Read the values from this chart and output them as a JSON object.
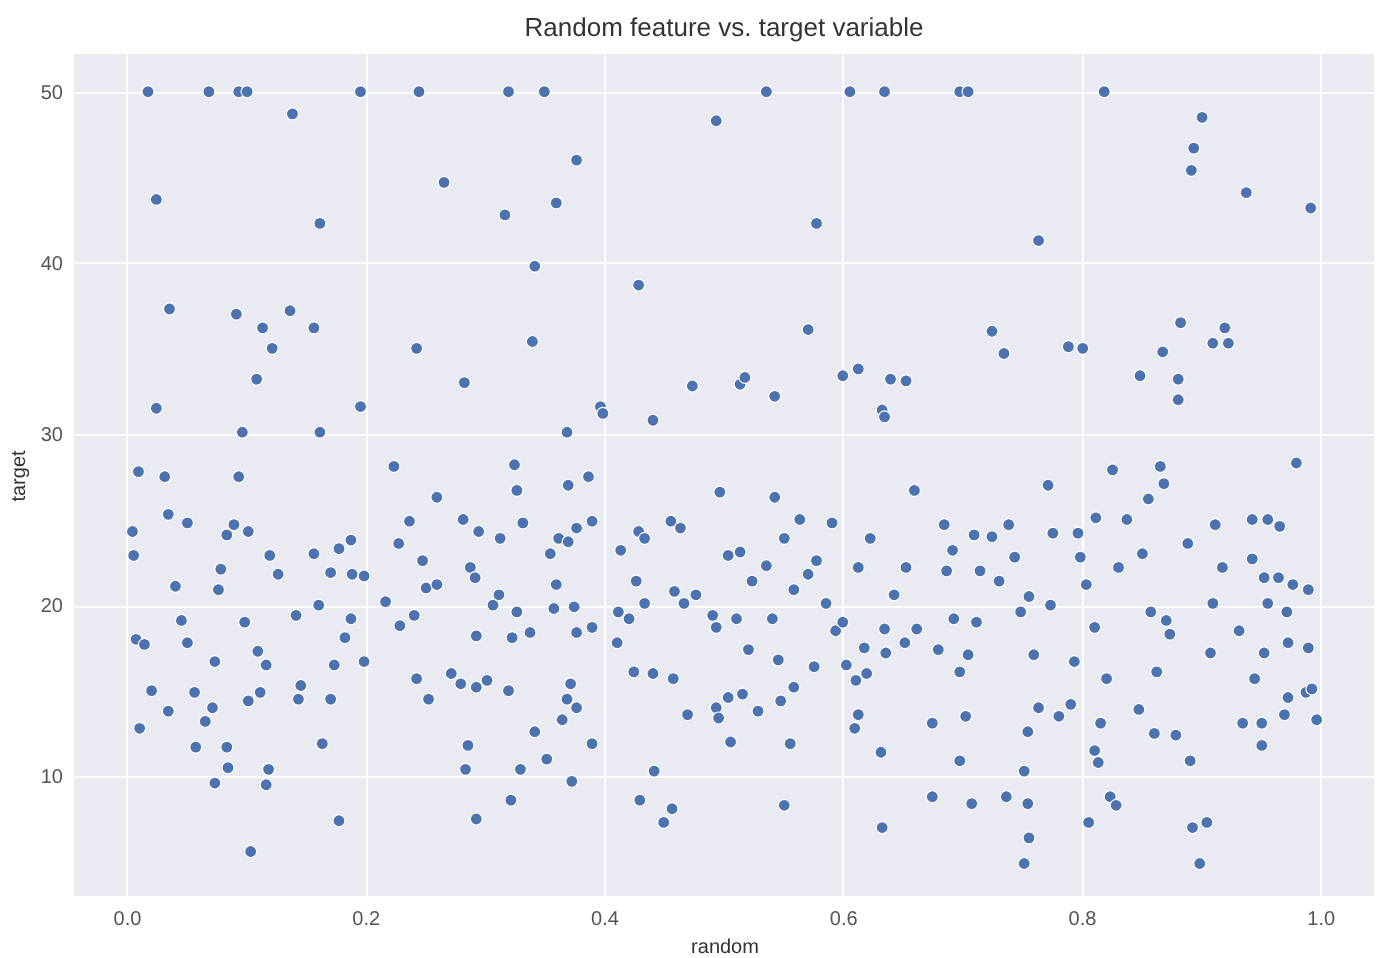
{
  "chart_data": {
    "type": "scatter",
    "title": "Random feature vs. target variable",
    "xlabel": "random",
    "ylabel": "target",
    "x": [
      0.018,
      0.069,
      0.094,
      0.101,
      0.196,
      0.245,
      0.32,
      0.35,
      0.536,
      0.606,
      0.635,
      0.698,
      0.705,
      0.819,
      0.139,
      0.025,
      0.162,
      0.266,
      0.317,
      0.377,
      0.36,
      0.342,
      0.494,
      0.578,
      0.901,
      0.894,
      0.892,
      0.938,
      0.992,
      0.764,
      0.036,
      0.092,
      0.137,
      0.114,
      0.157,
      0.122,
      0.243,
      0.34,
      0.109,
      0.283,
      0.429,
      0.474,
      0.196,
      0.025,
      0.397,
      0.399,
      0.441,
      0.369,
      0.162,
      0.097,
      0.571,
      0.883,
      0.92,
      0.725,
      0.735,
      0.789,
      0.801,
      0.868,
      0.91,
      0.923,
      0.6,
      0.613,
      0.64,
      0.653,
      0.881,
      0.849,
      0.543,
      0.514,
      0.518,
      0.633,
      0.635,
      0.881,
      0.005,
      0.01,
      0.006,
      0.008,
      0.011,
      0.015,
      0.021,
      0.032,
      0.035,
      0.035,
      0.041,
      0.051,
      0.046,
      0.057,
      0.058,
      0.051,
      0.066,
      0.072,
      0.074,
      0.074,
      0.077,
      0.079,
      0.084,
      0.084,
      0.085,
      0.09,
      0.094,
      0.099,
      0.102,
      0.104,
      0.102,
      0.11,
      0.112,
      0.117,
      0.117,
      0.119,
      0.12,
      0.127,
      0.142,
      0.146,
      0.144,
      0.157,
      0.161,
      0.164,
      0.171,
      0.171,
      0.174,
      0.178,
      0.178,
      0.183,
      0.188,
      0.189,
      0.188,
      0.199,
      0.199,
      0.217,
      0.224,
      0.228,
      0.229,
      0.237,
      0.241,
      0.243,
      0.248,
      0.251,
      0.253,
      0.26,
      0.26,
      0.272,
      0.28,
      0.282,
      0.284,
      0.286,
      0.288,
      0.292,
      0.293,
      0.293,
      0.293,
      0.295,
      0.302,
      0.307,
      0.312,
      0.313,
      0.32,
      0.322,
      0.323,
      0.325,
      0.327,
      0.327,
      0.33,
      0.332,
      0.338,
      0.342,
      0.352,
      0.355,
      0.358,
      0.36,
      0.362,
      0.365,
      0.369,
      0.37,
      0.37,
      0.372,
      0.373,
      0.375,
      0.377,
      0.377,
      0.377,
      0.387,
      0.39,
      0.39,
      0.39,
      0.411,
      0.412,
      0.414,
      0.421,
      0.425,
      0.427,
      0.429,
      0.43,
      0.434,
      0.434,
      0.441,
      0.442,
      0.45,
      0.456,
      0.457,
      0.458,
      0.459,
      0.464,
      0.467,
      0.47,
      0.476,
      0.491,
      0.494,
      0.494,
      0.496,
      0.477,
      0.497,
      0.504,
      0.504,
      0.506,
      0.511,
      0.514,
      0.516,
      0.521,
      0.524,
      0.529,
      0.536,
      0.541,
      0.543,
      0.546,
      0.548,
      0.551,
      0.551,
      0.556,
      0.559,
      0.559,
      0.564,
      0.571,
      0.576,
      0.578,
      0.586,
      0.591,
      0.594,
      0.6,
      0.603,
      0.61,
      0.611,
      0.613,
      0.613,
      0.618,
      0.62,
      0.623,
      0.632,
      0.633,
      0.635,
      0.636,
      0.643,
      0.652,
      0.653,
      0.66,
      0.662,
      0.675,
      0.675,
      0.68,
      0.685,
      0.687,
      0.692,
      0.693,
      0.698,
      0.698,
      0.703,
      0.705,
      0.708,
      0.71,
      0.712,
      0.715,
      0.725,
      0.731,
      0.737,
      0.739,
      0.744,
      0.749,
      0.752,
      0.752,
      0.755,
      0.755,
      0.756,
      0.756,
      0.76,
      0.764,
      0.772,
      0.774,
      0.776,
      0.781,
      0.791,
      0.794,
      0.797,
      0.799,
      0.804,
      0.806,
      0.811,
      0.811,
      0.812,
      0.814,
      0.816,
      0.821,
      0.824,
      0.826,
      0.829,
      0.831,
      0.838,
      0.848,
      0.851,
      0.856,
      0.858,
      0.861,
      0.863,
      0.866,
      0.869,
      0.871,
      0.874,
      0.879,
      0.889,
      0.891,
      0.893,
      0.899,
      0.905,
      0.908,
      0.91,
      0.912,
      0.918,
      0.935,
      0.932,
      0.943,
      0.943,
      0.945,
      0.951,
      0.951,
      0.953,
      0.953,
      0.956,
      0.956,
      0.965,
      0.966,
      0.97,
      0.972,
      0.973,
      0.973,
      0.977,
      0.98,
      0.988,
      0.99,
      0.99,
      0.993,
      0.997
    ],
    "values": [
      50,
      50,
      50,
      50,
      50,
      50,
      50,
      50,
      50,
      50,
      50,
      50,
      50,
      50,
      48.7,
      43.7,
      42.3,
      44.7,
      42.8,
      46,
      43.5,
      39.8,
      48.3,
      42.3,
      48.5,
      46.7,
      45.4,
      44.1,
      43.2,
      41.3,
      37.3,
      37,
      37.2,
      36.2,
      36.2,
      35,
      35,
      35.4,
      33.2,
      33,
      38.7,
      32.8,
      31.6,
      31.5,
      31.6,
      31.2,
      30.8,
      30.1,
      30.1,
      30.1,
      36.1,
      36.5,
      36.2,
      36,
      34.7,
      35.1,
      35,
      34.8,
      35.3,
      35.3,
      33.4,
      33.8,
      33.2,
      33.1,
      33.2,
      33.4,
      32.2,
      32.9,
      33.3,
      31.4,
      31,
      32,
      24.3,
      27.8,
      22.9,
      18.0,
      12.8,
      17.7,
      15.0,
      27.5,
      25.3,
      13.8,
      21.1,
      24.8,
      19.1,
      14.9,
      11.7,
      17.8,
      13.2,
      14.0,
      9.6,
      16.7,
      20.9,
      22.1,
      24.1,
      11.7,
      10.5,
      24.7,
      27.5,
      19.0,
      14.4,
      5.6,
      24.3,
      17.3,
      14.9,
      16.5,
      9.5,
      10.4,
      22.9,
      21.8,
      19.4,
      15.3,
      14.5,
      23.0,
      20.0,
      11.9,
      21.9,
      14.5,
      16.5,
      7.4,
      23.3,
      18.1,
      23.8,
      21.8,
      19.2,
      16.7,
      21.7,
      20.2,
      28.1,
      23.6,
      18.8,
      24.9,
      19.4,
      15.7,
      22.6,
      21.0,
      14.5,
      21.2,
      26.3,
      16.0,
      15.4,
      25.0,
      10.4,
      11.8,
      22.2,
      21.6,
      18.2,
      15.2,
      7.5,
      24.3,
      15.6,
      20.0,
      20.6,
      23.9,
      15.0,
      8.6,
      18.1,
      28.2,
      26.7,
      19.6,
      10.4,
      24.8,
      18.4,
      12.6,
      11.0,
      23.0,
      19.8,
      21.2,
      23.9,
      13.3,
      14.5,
      27.0,
      23.7,
      15.4,
      9.7,
      19.9,
      18.4,
      14.0,
      24.5,
      27.5,
      24.9,
      18.7,
      11.9,
      17.8,
      19.6,
      23.2,
      19.2,
      16.1,
      21.4,
      24.3,
      8.6,
      20.1,
      23.9,
      16.0,
      10.3,
      7.3,
      24.9,
      8.1,
      15.7,
      20.8,
      24.5,
      20.1,
      13.6,
      20.6,
      19.4,
      18.7,
      14.0,
      13.4,
      20.6,
      26.6,
      22.9,
      14.6,
      12.0,
      19.2,
      23.1,
      14.8,
      17.4,
      21.4,
      13.8,
      22.3,
      19.2,
      26.3,
      16.8,
      14.4,
      8.3,
      23.9,
      11.9,
      20.9,
      15.2,
      25.0,
      21.8,
      16.4,
      22.6,
      20.1,
      24.8,
      18.5,
      19.0,
      16.5,
      12.8,
      15.6,
      13.6,
      22.2,
      17.5,
      16.0,
      23.9,
      11.4,
      7.0,
      18.6,
      17.2,
      20.6,
      17.8,
      22.2,
      26.7,
      18.6,
      13.1,
      8.8,
      17.4,
      24.7,
      22.0,
      23.2,
      19.2,
      16.1,
      10.9,
      13.5,
      17.1,
      8.4,
      24.1,
      19.0,
      22.0,
      24.0,
      21.4,
      8.8,
      24.7,
      22.8,
      19.6,
      10.3,
      4.9,
      12.6,
      8.4,
      6.4,
      20.5,
      17.1,
      14.0,
      27.0,
      20.0,
      24.2,
      13.5,
      14.2,
      16.7,
      24.2,
      22.8,
      21.2,
      7.3,
      11.5,
      18.7,
      25.1,
      10.8,
      13.1,
      15.7,
      8.8,
      27.9,
      8.3,
      22.2,
      25.0,
      13.9,
      23.0,
      26.2,
      19.6,
      12.5,
      16.1,
      28.1,
      27.1,
      19.1,
      18.3,
      12.4,
      23.6,
      10.9,
      7.0,
      4.9,
      7.3,
      17.2,
      20.1,
      24.7,
      22.2,
      13.1,
      18.5,
      25.0,
      22.7,
      15.7,
      13.1,
      11.8,
      17.2,
      21.6,
      25.0,
      20.1,
      21.6,
      24.6,
      13.6,
      19.6,
      14.6,
      17.8,
      21.2,
      28.3,
      14.9,
      17.5,
      20.9,
      15.1,
      13.3
    ],
    "color": "#4c72b0",
    "marker": "circle",
    "xlim": [
      -0.044,
      1.045
    ],
    "ylim": [
      3,
      52.2
    ],
    "xticks": [
      {
        "value": 0,
        "label": "0.0"
      },
      0.2,
      0.4,
      0.6,
      0.8,
      {
        "value": 1,
        "label": "1.0"
      }
    ],
    "yticks": [
      10,
      20,
      30,
      40,
      50
    ],
    "grid": true
  }
}
